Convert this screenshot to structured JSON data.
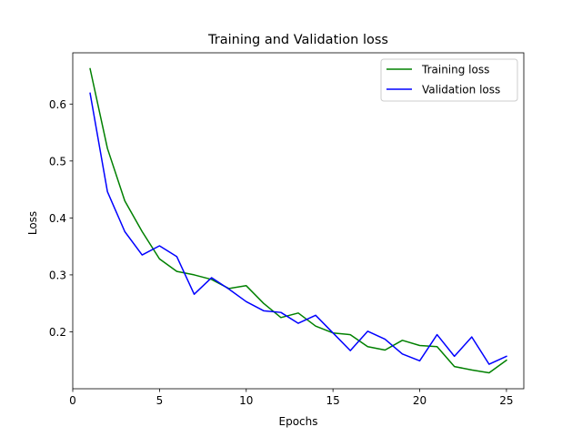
{
  "chart_data": {
    "type": "line",
    "title": "Training and Validation loss",
    "xlabel": "Epochs",
    "ylabel": "Loss",
    "xlim": [
      0,
      26
    ],
    "ylim": [
      0.1,
      0.69
    ],
    "xticks": [
      0,
      5,
      10,
      15,
      20,
      25
    ],
    "yticks": [
      0.2,
      0.3,
      0.4,
      0.5,
      0.6
    ],
    "grid": false,
    "legend_position": "top-right",
    "x": [
      1,
      2,
      3,
      4,
      5,
      6,
      7,
      8,
      9,
      10,
      11,
      12,
      13,
      14,
      15,
      16,
      17,
      18,
      19,
      20,
      21,
      22,
      23,
      24,
      25
    ],
    "series": [
      {
        "name": "Training loss",
        "color": "#008000",
        "values": [
          0.662,
          0.522,
          0.43,
          0.376,
          0.328,
          0.306,
          0.3,
          0.292,
          0.276,
          0.281,
          0.25,
          0.225,
          0.233,
          0.21,
          0.198,
          0.195,
          0.174,
          0.168,
          0.185,
          0.176,
          0.174,
          0.139,
          0.133,
          0.128,
          0.15
        ]
      },
      {
        "name": "Validation loss",
        "color": "#0000ff",
        "values": [
          0.619,
          0.446,
          0.376,
          0.335,
          0.351,
          0.332,
          0.266,
          0.295,
          0.275,
          0.253,
          0.237,
          0.234,
          0.215,
          0.229,
          0.198,
          0.167,
          0.201,
          0.187,
          0.161,
          0.149,
          0.195,
          0.157,
          0.191,
          0.143,
          0.157
        ]
      }
    ]
  }
}
